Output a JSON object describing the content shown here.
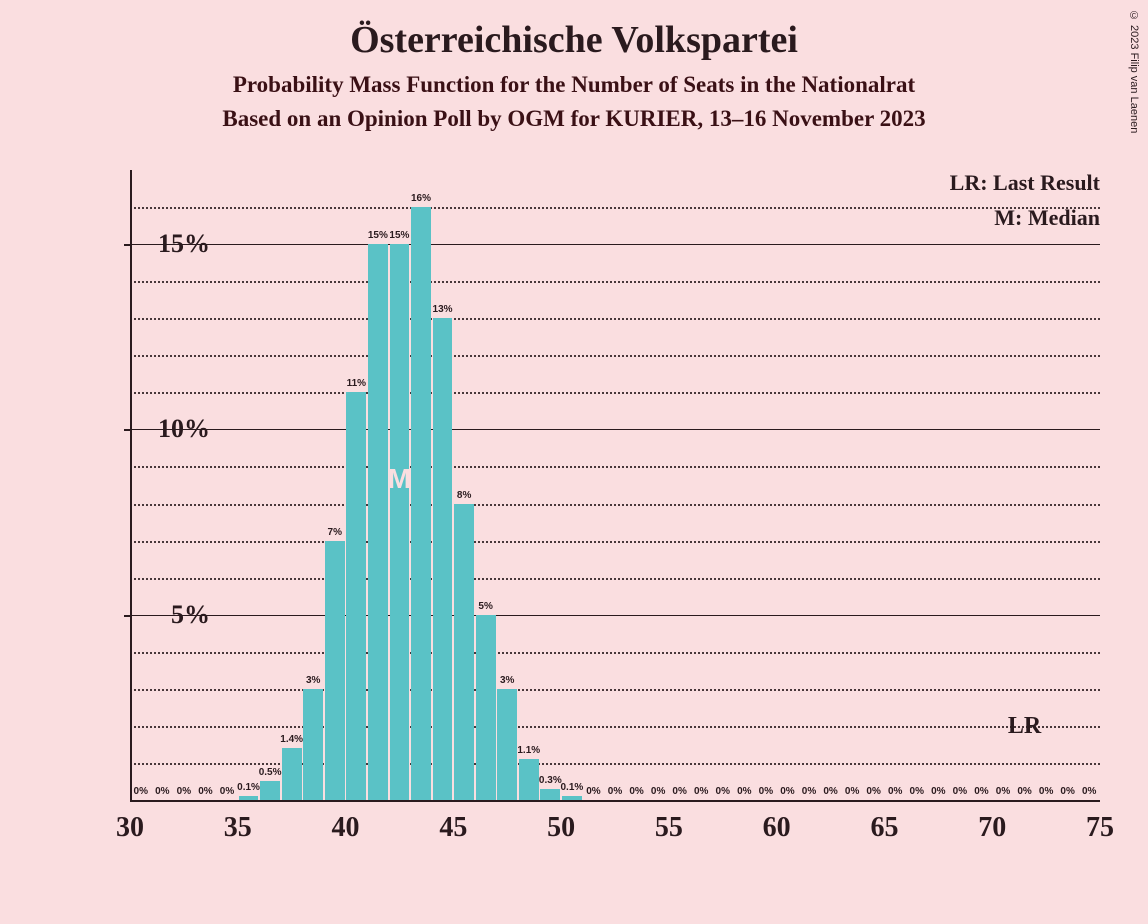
{
  "copyright": "© 2023 Filip van Laenen",
  "title": "Österreichische Volkspartei",
  "subtitle1": "Probability Mass Function for the Number of Seats in the Nationalrat",
  "subtitle2": "Based on an Opinion Poll by OGM for KURIER, 13–16 November 2023",
  "legend": {
    "lr": "LR: Last Result",
    "m": "M: Median"
  },
  "chart": {
    "type": "histogram",
    "background_color": "#fadee0",
    "bar_color": "#5ac2c6",
    "text_color": "#2a1a1e",
    "grid_color": "#2a1a1e",
    "x_range": [
      30,
      75
    ],
    "y_range": [
      0,
      17
    ],
    "y_major_ticks": [
      5,
      10,
      15
    ],
    "y_minor_step": 1,
    "x_major_ticks": [
      30,
      35,
      40,
      45,
      50,
      55,
      60,
      65,
      70,
      75
    ],
    "bar_width_ratio": 0.92,
    "median_seat": 42,
    "median_label": "M",
    "lr_seat": 71,
    "lr_label": "LR",
    "bars": [
      {
        "seat": 30,
        "value": 0,
        "label": "0%"
      },
      {
        "seat": 31,
        "value": 0,
        "label": "0%"
      },
      {
        "seat": 32,
        "value": 0,
        "label": "0%"
      },
      {
        "seat": 33,
        "value": 0,
        "label": "0%"
      },
      {
        "seat": 34,
        "value": 0,
        "label": "0%"
      },
      {
        "seat": 35,
        "value": 0.1,
        "label": "0.1%"
      },
      {
        "seat": 36,
        "value": 0.5,
        "label": "0.5%"
      },
      {
        "seat": 37,
        "value": 1.4,
        "label": "1.4%"
      },
      {
        "seat": 38,
        "value": 3,
        "label": "3%"
      },
      {
        "seat": 39,
        "value": 7,
        "label": "7%"
      },
      {
        "seat": 40,
        "value": 11,
        "label": "11%"
      },
      {
        "seat": 41,
        "value": 15,
        "label": "15%"
      },
      {
        "seat": 42,
        "value": 15,
        "label": "15%"
      },
      {
        "seat": 43,
        "value": 16,
        "label": "16%"
      },
      {
        "seat": 44,
        "value": 13,
        "label": "13%"
      },
      {
        "seat": 45,
        "value": 8,
        "label": "8%"
      },
      {
        "seat": 46,
        "value": 5,
        "label": "5%"
      },
      {
        "seat": 47,
        "value": 3,
        "label": "3%"
      },
      {
        "seat": 48,
        "value": 1.1,
        "label": "1.1%"
      },
      {
        "seat": 49,
        "value": 0.3,
        "label": "0.3%"
      },
      {
        "seat": 50,
        "value": 0.1,
        "label": "0.1%"
      },
      {
        "seat": 51,
        "value": 0,
        "label": "0%"
      },
      {
        "seat": 52,
        "value": 0,
        "label": "0%"
      },
      {
        "seat": 53,
        "value": 0,
        "label": "0%"
      },
      {
        "seat": 54,
        "value": 0,
        "label": "0%"
      },
      {
        "seat": 55,
        "value": 0,
        "label": "0%"
      },
      {
        "seat": 56,
        "value": 0,
        "label": "0%"
      },
      {
        "seat": 57,
        "value": 0,
        "label": "0%"
      },
      {
        "seat": 58,
        "value": 0,
        "label": "0%"
      },
      {
        "seat": 59,
        "value": 0,
        "label": "0%"
      },
      {
        "seat": 60,
        "value": 0,
        "label": "0%"
      },
      {
        "seat": 61,
        "value": 0,
        "label": "0%"
      },
      {
        "seat": 62,
        "value": 0,
        "label": "0%"
      },
      {
        "seat": 63,
        "value": 0,
        "label": "0%"
      },
      {
        "seat": 64,
        "value": 0,
        "label": "0%"
      },
      {
        "seat": 65,
        "value": 0,
        "label": "0%"
      },
      {
        "seat": 66,
        "value": 0,
        "label": "0%"
      },
      {
        "seat": 67,
        "value": 0,
        "label": "0%"
      },
      {
        "seat": 68,
        "value": 0,
        "label": "0%"
      },
      {
        "seat": 69,
        "value": 0,
        "label": "0%"
      },
      {
        "seat": 70,
        "value": 0,
        "label": "0%"
      },
      {
        "seat": 71,
        "value": 0,
        "label": "0%"
      },
      {
        "seat": 72,
        "value": 0,
        "label": "0%"
      },
      {
        "seat": 73,
        "value": 0,
        "label": "0%"
      },
      {
        "seat": 74,
        "value": 0,
        "label": "0%"
      }
    ]
  }
}
